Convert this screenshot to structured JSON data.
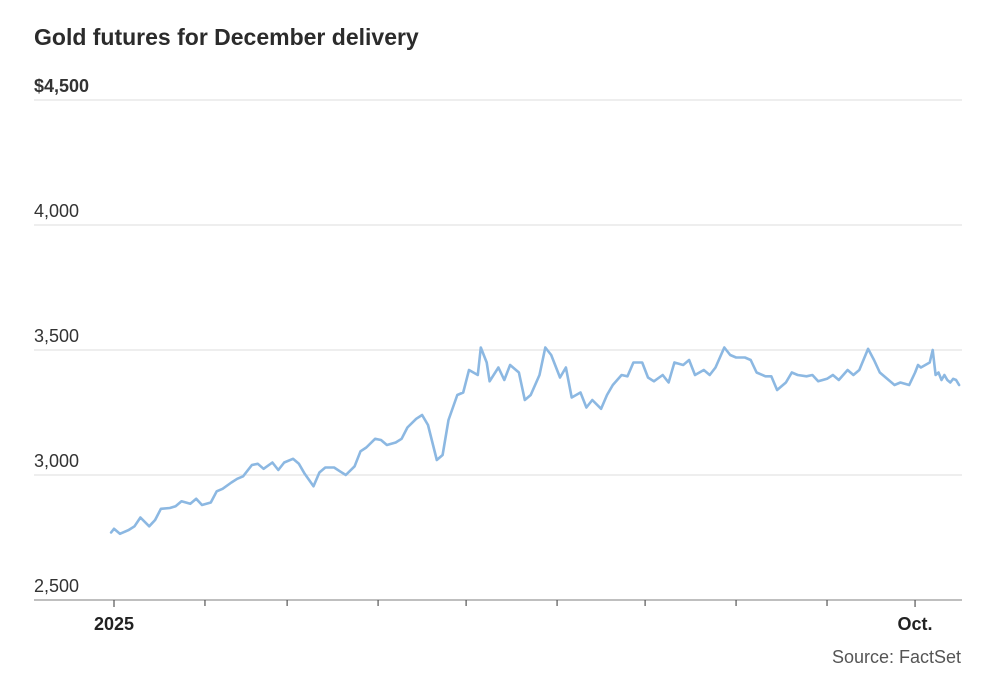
{
  "chart_data": {
    "type": "line",
    "title": "Gold futures for December delivery",
    "xlabel": "",
    "ylabel": "",
    "ylim": [
      2500,
      4500
    ],
    "yticks": [
      {
        "value": 4500,
        "label": "$4,500"
      },
      {
        "value": 4000,
        "label": "4,000"
      },
      {
        "value": 3500,
        "label": "3,500"
      },
      {
        "value": 3000,
        "label": "3,000"
      },
      {
        "value": 2500,
        "label": "2,500"
      }
    ],
    "x_range": [
      "2025-01-01",
      "2025-10-17"
    ],
    "xtick_labels": [
      {
        "date": "2025-01-01",
        "label": "2025"
      },
      {
        "date": "2025-10-01",
        "label": "Oct."
      }
    ],
    "x_minor_ticks": [
      "2025-02-01",
      "2025-03-01",
      "2025-04-01",
      "2025-05-01",
      "2025-06-01",
      "2025-07-01",
      "2025-08-01",
      "2025-09-01"
    ],
    "grid": true,
    "color": "#8cb8e2",
    "series": [
      {
        "values": [
          [
            "2024-12-31",
            2770
          ],
          [
            "2025-01-01",
            2785
          ],
          [
            "2025-01-03",
            2765
          ],
          [
            "2025-01-06",
            2780
          ],
          [
            "2025-01-08",
            2795
          ],
          [
            "2025-01-10",
            2830
          ],
          [
            "2025-01-13",
            2795
          ],
          [
            "2025-01-15",
            2820
          ],
          [
            "2025-01-17",
            2865
          ],
          [
            "2025-01-20",
            2868
          ],
          [
            "2025-01-22",
            2875
          ],
          [
            "2025-01-24",
            2895
          ],
          [
            "2025-01-27",
            2885
          ],
          [
            "2025-01-29",
            2905
          ],
          [
            "2025-01-31",
            2880
          ],
          [
            "2025-02-03",
            2890
          ],
          [
            "2025-02-05",
            2935
          ],
          [
            "2025-02-07",
            2945
          ],
          [
            "2025-02-10",
            2970
          ],
          [
            "2025-02-12",
            2985
          ],
          [
            "2025-02-14",
            2995
          ],
          [
            "2025-02-17",
            3040
          ],
          [
            "2025-02-19",
            3045
          ],
          [
            "2025-02-21",
            3025
          ],
          [
            "2025-02-24",
            3050
          ],
          [
            "2025-02-26",
            3020
          ],
          [
            "2025-02-28",
            3050
          ],
          [
            "2025-03-03",
            3065
          ],
          [
            "2025-03-05",
            3045
          ],
          [
            "2025-03-07",
            3005
          ],
          [
            "2025-03-10",
            2955
          ],
          [
            "2025-03-12",
            3010
          ],
          [
            "2025-03-14",
            3030
          ],
          [
            "2025-03-17",
            3030
          ],
          [
            "2025-03-19",
            3015
          ],
          [
            "2025-03-21",
            3000
          ],
          [
            "2025-03-24",
            3035
          ],
          [
            "2025-03-26",
            3095
          ],
          [
            "2025-03-28",
            3110
          ],
          [
            "2025-03-31",
            3145
          ],
          [
            "2025-04-02",
            3140
          ],
          [
            "2025-04-04",
            3120
          ],
          [
            "2025-04-07",
            3130
          ],
          [
            "2025-04-09",
            3145
          ],
          [
            "2025-04-11",
            3190
          ],
          [
            "2025-04-14",
            3225
          ],
          [
            "2025-04-16",
            3240
          ],
          [
            "2025-04-18",
            3200
          ],
          [
            "2025-04-21",
            3060
          ],
          [
            "2025-04-23",
            3080
          ],
          [
            "2025-04-25",
            3220
          ],
          [
            "2025-04-28",
            3320
          ],
          [
            "2025-04-30",
            3330
          ],
          [
            "2025-05-02",
            3420
          ],
          [
            "2025-05-05",
            3400
          ],
          [
            "2025-05-06",
            3510
          ],
          [
            "2025-05-08",
            3450
          ],
          [
            "2025-05-09",
            3375
          ],
          [
            "2025-05-12",
            3430
          ],
          [
            "2025-05-14",
            3380
          ],
          [
            "2025-05-16",
            3440
          ],
          [
            "2025-05-19",
            3410
          ],
          [
            "2025-05-21",
            3300
          ],
          [
            "2025-05-23",
            3320
          ],
          [
            "2025-05-26",
            3400
          ],
          [
            "2025-05-28",
            3510
          ],
          [
            "2025-05-30",
            3480
          ],
          [
            "2025-06-02",
            3390
          ],
          [
            "2025-06-04",
            3430
          ],
          [
            "2025-06-06",
            3310
          ],
          [
            "2025-06-09",
            3330
          ],
          [
            "2025-06-11",
            3270
          ],
          [
            "2025-06-13",
            3300
          ],
          [
            "2025-06-16",
            3265
          ],
          [
            "2025-06-18",
            3320
          ],
          [
            "2025-06-20",
            3360
          ],
          [
            "2025-06-23",
            3400
          ],
          [
            "2025-06-25",
            3395
          ],
          [
            "2025-06-27",
            3450
          ],
          [
            "2025-06-30",
            3450
          ],
          [
            "2025-07-02",
            3390
          ],
          [
            "2025-07-04",
            3375
          ],
          [
            "2025-07-07",
            3400
          ],
          [
            "2025-07-09",
            3370
          ],
          [
            "2025-07-11",
            3450
          ],
          [
            "2025-07-14",
            3440
          ],
          [
            "2025-07-16",
            3460
          ],
          [
            "2025-07-18",
            3400
          ],
          [
            "2025-07-21",
            3420
          ],
          [
            "2025-07-23",
            3400
          ],
          [
            "2025-07-25",
            3430
          ],
          [
            "2025-07-28",
            3510
          ],
          [
            "2025-07-30",
            3480
          ],
          [
            "2025-08-01",
            3470
          ],
          [
            "2025-08-04",
            3470
          ],
          [
            "2025-08-06",
            3460
          ],
          [
            "2025-08-08",
            3410
          ],
          [
            "2025-08-11",
            3395
          ],
          [
            "2025-08-13",
            3395
          ],
          [
            "2025-08-15",
            3340
          ],
          [
            "2025-08-18",
            3370
          ],
          [
            "2025-08-20",
            3410
          ],
          [
            "2025-08-22",
            3400
          ],
          [
            "2025-08-25",
            3395
          ],
          [
            "2025-08-27",
            3400
          ],
          [
            "2025-08-29",
            3375
          ],
          [
            "2025-09-01",
            3385
          ],
          [
            "2025-09-03",
            3400
          ],
          [
            "2025-09-05",
            3380
          ],
          [
            "2025-09-08",
            3420
          ],
          [
            "2025-09-10",
            3400
          ],
          [
            "2025-09-12",
            3420
          ],
          [
            "2025-09-15",
            3505
          ],
          [
            "2025-09-17",
            3460
          ],
          [
            "2025-09-19",
            3410
          ],
          [
            "2025-09-22",
            3380
          ],
          [
            "2025-09-24",
            3360
          ],
          [
            "2025-09-26",
            3370
          ],
          [
            "2025-09-29",
            3360
          ],
          [
            "2025-10-01",
            3410
          ],
          [
            "2025-10-02",
            3440
          ],
          [
            "2025-10-03",
            3430
          ],
          [
            "2025-10-06",
            3450
          ],
          [
            "2025-10-07",
            3500
          ],
          [
            "2025-10-08",
            3400
          ],
          [
            "2025-10-09",
            3410
          ],
          [
            "2025-10-10",
            3380
          ],
          [
            "2025-10-11",
            3400
          ],
          [
            "2025-10-12",
            3380
          ],
          [
            "2025-10-13",
            3370
          ],
          [
            "2025-10-14",
            3385
          ],
          [
            "2025-10-15",
            3380
          ],
          [
            "2025-10-16",
            3360
          ]
        ]
      }
    ],
    "source": "Source: FactSet"
  }
}
